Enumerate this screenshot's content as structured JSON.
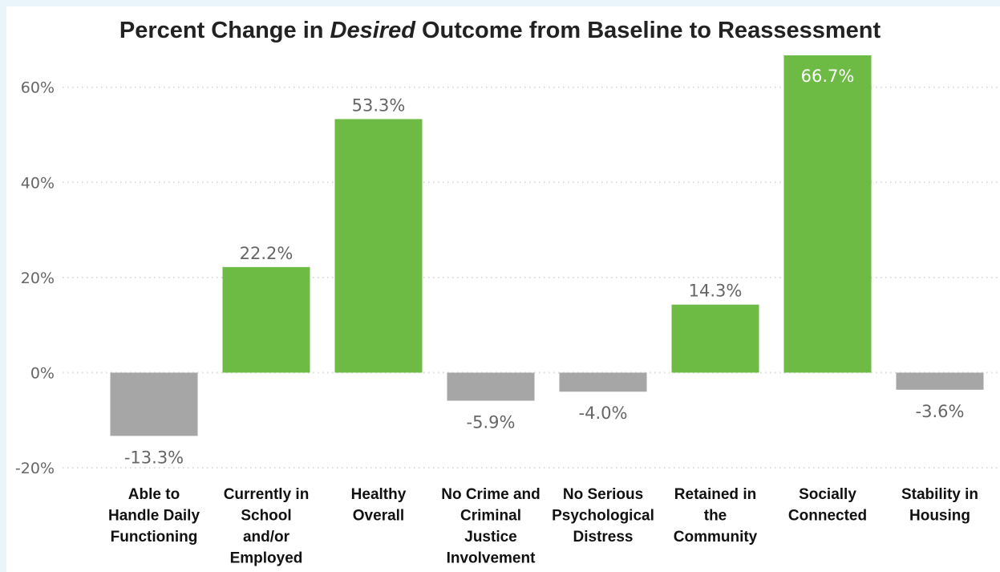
{
  "chart_data": {
    "type": "bar",
    "title_parts": [
      "Percent Change in ",
      "Desired",
      " Outcome from Baseline to Reassessment"
    ],
    "categories": [
      "Able to Handle Daily Functioning",
      "Currently in School and/or Employed",
      "Healthy Overall",
      "No Crime and Criminal Justice Involvement",
      "No Serious Psychological Distress",
      "Retained in the Community",
      "Socially Connected",
      "Stability in Housing"
    ],
    "category_lines": [
      [
        "Able to",
        "Handle Daily",
        "Functioning"
      ],
      [
        "Currently in",
        "School",
        "and/or",
        "Employed"
      ],
      [
        "Healthy",
        "Overall"
      ],
      [
        "No Crime and",
        "Criminal",
        "Justice",
        "Involvement"
      ],
      [
        "No Serious",
        "Psychological",
        "Distress"
      ],
      [
        "Retained in",
        "the",
        "Community"
      ],
      [
        "Socially",
        "Connected"
      ],
      [
        "Stability in",
        "Housing"
      ]
    ],
    "values": [
      -13.3,
      22.2,
      53.3,
      -5.9,
      -4.0,
      14.3,
      66.7,
      -3.6
    ],
    "data_labels": [
      "-13.3%",
      "22.2%",
      "53.3%",
      "-5.9%",
      "-4.0%",
      "14.3%",
      "66.7%",
      "-3.6%"
    ],
    "yticks": [
      -20,
      0,
      20,
      40,
      60
    ],
    "ytick_labels": [
      "-20%",
      "0%",
      "20%",
      "40%",
      "60%"
    ],
    "ylim": [
      -20,
      66.7
    ],
    "grid": true,
    "xlabel": "",
    "ylabel": "",
    "colors": {
      "positive": "#6dbb45",
      "negative": "#a6a6a6",
      "label": "#666666",
      "label_inside": "#ffffff",
      "grid": "#d9d9d9"
    }
  }
}
